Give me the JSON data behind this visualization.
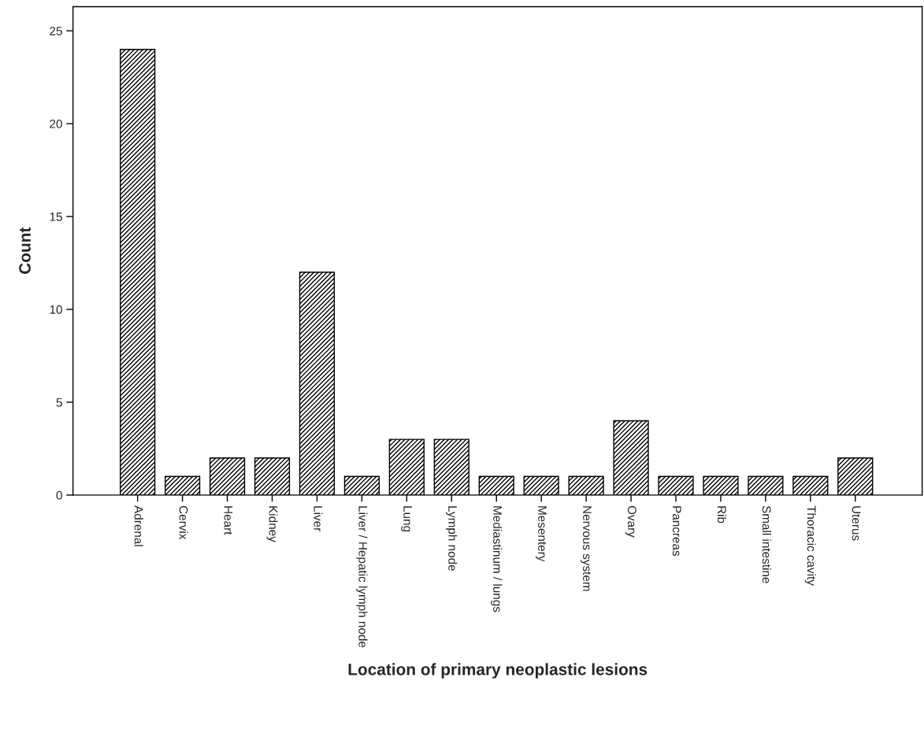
{
  "chart_data": {
    "type": "bar",
    "xlabel": "Location of primary neoplastic lesions",
    "ylabel": "Count",
    "categories": [
      "Adrenal",
      "Cervix",
      "Heart",
      "Kidney",
      "Liver",
      "Liver / Hepatic lymph node",
      "Lung",
      "Lymph node",
      "Mediastinum / lungs",
      "Mesentery",
      "Nervous system",
      "Ovary",
      "Pancreas",
      "Rib",
      "Small intestine",
      "Thoracic cavity",
      "Uterus"
    ],
    "values": [
      24,
      1,
      2,
      2,
      12,
      1,
      3,
      3,
      1,
      1,
      1,
      4,
      1,
      1,
      1,
      1,
      2
    ],
    "color": "#000000",
    "ylim": [
      0,
      26.3
    ],
    "yticks": [
      0,
      5,
      10,
      15,
      20,
      25
    ],
    "grid": false,
    "legend": false
  }
}
